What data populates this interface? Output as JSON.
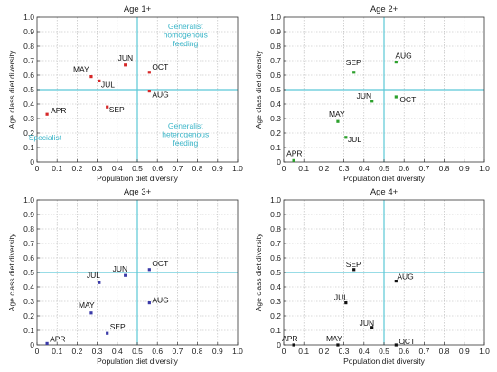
{
  "chart_data": [
    {
      "type": "scatter",
      "title": "Age 1+",
      "xlabel": "Population diet diversity",
      "ylabel": "Age class diet diversity",
      "xlim": [
        0,
        1
      ],
      "ylim": [
        0,
        1
      ],
      "xticks": [
        "0",
        "0.1",
        "0.2",
        "0.3",
        "0.4",
        "0.5",
        "0.6",
        "0.7",
        "0.8",
        "0.9",
        "1.0"
      ],
      "yticks": [
        "0",
        "0.1",
        "0.2",
        "0.3",
        "0.4",
        "0.5",
        "0.6",
        "0.7",
        "0.8",
        "0.9",
        "1.0"
      ],
      "reference_lines": {
        "x": 0.5,
        "y": 0.5
      },
      "grid": true,
      "marker_color": "#d62728",
      "points": [
        {
          "label": "APR",
          "x": 0.05,
          "y": 0.33
        },
        {
          "label": "MAY",
          "x": 0.27,
          "y": 0.59
        },
        {
          "label": "JUL",
          "x": 0.31,
          "y": 0.56
        },
        {
          "label": "SEP",
          "x": 0.35,
          "y": 0.38
        },
        {
          "label": "JUN",
          "x": 0.44,
          "y": 0.67
        },
        {
          "label": "OCT",
          "x": 0.56,
          "y": 0.62
        },
        {
          "label": "AUG",
          "x": 0.56,
          "y": 0.49
        }
      ],
      "annotations": [
        {
          "lines": [
            "Generalist",
            "homogenous",
            "feeding"
          ],
          "x": 0.74,
          "y": 0.92
        },
        {
          "lines": [
            "Specialist"
          ],
          "x": 0.04,
          "y": 0.15
        },
        {
          "lines": [
            "Generalist",
            "heterogenous",
            "feeding"
          ],
          "x": 0.74,
          "y": 0.23
        }
      ]
    },
    {
      "type": "scatter",
      "title": "Age 2+",
      "xlabel": "Population diet diversity",
      "ylabel": "Age class diet diversity",
      "xlim": [
        0,
        1
      ],
      "ylim": [
        0,
        1
      ],
      "xticks": [
        "0",
        "0.1",
        "0.2",
        "0.3",
        "0.4",
        "0.5",
        "0.6",
        "0.7",
        "0.8",
        "0.9",
        "1.0"
      ],
      "yticks": [
        "0",
        "0.1",
        "0.2",
        "0.3",
        "0.4",
        "0.5",
        "0.6",
        "0.7",
        "0.8",
        "0.9",
        "1.0"
      ],
      "reference_lines": {
        "x": 0.5,
        "y": 0.5
      },
      "grid": true,
      "marker_color": "#2ca02c",
      "points": [
        {
          "label": "APR",
          "x": 0.05,
          "y": 0.01
        },
        {
          "label": "MAY",
          "x": 0.27,
          "y": 0.28
        },
        {
          "label": "JUL",
          "x": 0.31,
          "y": 0.17
        },
        {
          "label": "SEP",
          "x": 0.35,
          "y": 0.62
        },
        {
          "label": "JUN",
          "x": 0.44,
          "y": 0.42
        },
        {
          "label": "AUG",
          "x": 0.56,
          "y": 0.69
        },
        {
          "label": "OCT",
          "x": 0.56,
          "y": 0.45
        }
      ],
      "annotations": []
    },
    {
      "type": "scatter",
      "title": "Age 3+",
      "xlabel": "Population diet diversity",
      "ylabel": "Age class diet diversity",
      "xlim": [
        0,
        1
      ],
      "ylim": [
        0,
        1
      ],
      "xticks": [
        "0",
        "0.1",
        "0.2",
        "0.3",
        "0.4",
        "0.5",
        "0.6",
        "0.7",
        "0.8",
        "0.9",
        "1.0"
      ],
      "yticks": [
        "0",
        "0.1",
        "0.2",
        "0.3",
        "0.4",
        "0.5",
        "0.6",
        "0.7",
        "0.8",
        "0.9",
        "1.0"
      ],
      "reference_lines": {
        "x": 0.5,
        "y": 0.5
      },
      "grid": true,
      "marker_color": "#3a3aa8",
      "points": [
        {
          "label": "APR",
          "x": 0.05,
          "y": 0.01
        },
        {
          "label": "MAY",
          "x": 0.27,
          "y": 0.22
        },
        {
          "label": "SEP",
          "x": 0.35,
          "y": 0.08
        },
        {
          "label": "JUL",
          "x": 0.31,
          "y": 0.43
        },
        {
          "label": "JUN",
          "x": 0.44,
          "y": 0.48
        },
        {
          "label": "OCT",
          "x": 0.56,
          "y": 0.52
        },
        {
          "label": "AUG",
          "x": 0.56,
          "y": 0.29
        }
      ],
      "annotations": []
    },
    {
      "type": "scatter",
      "title": "Age 4+",
      "xlabel": "Population diet diversity",
      "ylabel": "Age class diet diversity",
      "xlim": [
        0,
        1
      ],
      "ylim": [
        0,
        1
      ],
      "xticks": [
        "0",
        "0.1",
        "0.2",
        "0.3",
        "0.4",
        "0.5",
        "0.6",
        "0.7",
        "0.8",
        "0.9",
        "1.0"
      ],
      "yticks": [
        "0",
        "0.1",
        "0.2",
        "0.3",
        "0.4",
        "0.5",
        "0.6",
        "0.7",
        "0.8",
        "0.9",
        "1.0"
      ],
      "reference_lines": {
        "x": 0.5,
        "y": 0.5
      },
      "grid": true,
      "marker_color": "#111111",
      "points": [
        {
          "label": "APR",
          "x": 0.05,
          "y": 0.0
        },
        {
          "label": "MAY",
          "x": 0.27,
          "y": 0.0
        },
        {
          "label": "JUL",
          "x": 0.31,
          "y": 0.29
        },
        {
          "label": "SEP",
          "x": 0.35,
          "y": 0.52
        },
        {
          "label": "JUN",
          "x": 0.44,
          "y": 0.12
        },
        {
          "label": "AUG",
          "x": 0.56,
          "y": 0.44
        },
        {
          "label": "OCT",
          "x": 0.56,
          "y": 0.0
        }
      ],
      "annotations": []
    }
  ],
  "colors": {
    "reference_line": "#5bc8d6",
    "annotation": "#3bb5c8",
    "grid": "#b5b5b5",
    "frame": "#333333"
  }
}
